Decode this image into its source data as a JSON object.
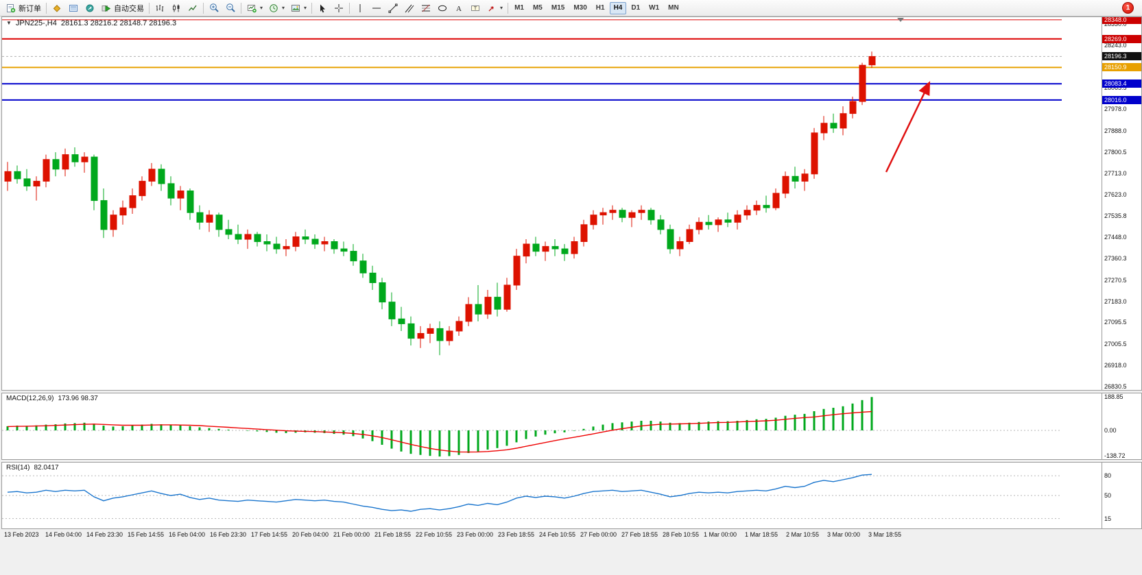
{
  "toolbar": {
    "new_order_label": "新订单",
    "autotrade_label": "自动交易",
    "timeframes": [
      "M1",
      "M5",
      "M15",
      "M30",
      "H1",
      "H4",
      "D1",
      "W1",
      "MN"
    ],
    "active_timeframe": "H4",
    "notification_count": "1"
  },
  "colors": {
    "candle_up": "#dd1200",
    "candle_down": "#00a81c",
    "macd_hist": "#00a81c",
    "macd_signal": "#ee0000",
    "rsi_line": "#1874cd",
    "arrow": "#e01010",
    "level_dash": "#b5b5b5"
  },
  "chart_data": {
    "type": "candlestick",
    "title_symbol": "JPN225-,H4",
    "title_ohlc": "28161.3 28216.2 28148.7 28196.3",
    "current_ohlc": {
      "open": "28161.3",
      "high": "28216.2",
      "low": "28148.7",
      "close": "28196.3"
    },
    "price_axis": {
      "ylim": [
        26816,
        28359
      ],
      "ticks": [
        "28330.0",
        "28243.0",
        "28065.5",
        "27978.0",
        "27888.0",
        "27800.5",
        "27713.0",
        "27623.0",
        "27535.8",
        "27448.0",
        "27360.3",
        "27270.5",
        "27183.0",
        "27095.5",
        "27005.5",
        "26918.0",
        "26830.5"
      ],
      "badges": [
        {
          "text": "28348.0",
          "price": 28348.0,
          "bg": "#cc0000"
        },
        {
          "text": "28269.0",
          "price": 28269.0,
          "bg": "#cc0000"
        },
        {
          "text": "28196.3",
          "price": 28196.3,
          "bg": "#111111"
        },
        {
          "text": "28150.9",
          "price": 28150.9,
          "bg": "#e8a000"
        },
        {
          "text": "28083.4",
          "price": 28083.4,
          "bg": "#0000cc"
        },
        {
          "text": "28016.0",
          "price": 28016.0,
          "bg": "#0000cc"
        }
      ]
    },
    "hlines": [
      {
        "price": 28348.0,
        "color": "#dd0000",
        "width": 1,
        "dash": false,
        "name": "resistance-line-28348"
      },
      {
        "price": 28269.0,
        "color": "#dd0000",
        "width": 2,
        "dash": false,
        "name": "resistance-line-28269"
      },
      {
        "price": 28196.3,
        "color": "#b0b0b0",
        "width": 1,
        "dash": true,
        "name": "bid-price-line"
      },
      {
        "price": 28150.9,
        "color": "#e8a000",
        "width": 2,
        "dash": false,
        "name": "orange-level-line-28150"
      },
      {
        "price": 28083.4,
        "color": "#0000cc",
        "width": 2,
        "dash": false,
        "name": "support-line-28083"
      },
      {
        "price": 28016.0,
        "color": "#0000cc",
        "width": 2,
        "dash": false,
        "name": "support-line-28016"
      }
    ],
    "annotations": [
      {
        "type": "arrow",
        "from_index": 91.5,
        "from_price": 27718,
        "to_index": 96,
        "to_price": 28088
      }
    ],
    "shift_marker_index": 93,
    "time_axis": [
      "13 Feb 2023",
      "14 Feb 04:00",
      "14 Feb 23:30",
      "15 Feb 14:55",
      "16 Feb 04:00",
      "16 Feb 23:30",
      "17 Feb 14:55",
      "20 Feb 04:00",
      "21 Feb 00:00",
      "21 Feb 18:55",
      "22 Feb 10:55",
      "23 Feb 00:00",
      "23 Feb 18:55",
      "24 Feb 10:55",
      "27 Feb 00:00",
      "27 Feb 18:55",
      "28 Feb 10:55",
      "1 Mar 00:00",
      "1 Mar 18:55",
      "2 Mar 10:55",
      "3 Mar 00:00",
      "3 Mar 18:55"
    ],
    "candles": [
      [
        27680,
        27760,
        27640,
        27720
      ],
      [
        27720,
        27745,
        27670,
        27690
      ],
      [
        27690,
        27730,
        27640,
        27660
      ],
      [
        27660,
        27700,
        27600,
        27680
      ],
      [
        27680,
        27790,
        27655,
        27770
      ],
      [
        27770,
        27800,
        27700,
        27730
      ],
      [
        27730,
        27815,
        27700,
        27790
      ],
      [
        27790,
        27820,
        27740,
        27760
      ],
      [
        27760,
        27800,
        27715,
        27780
      ],
      [
        27780,
        27790,
        27560,
        27600
      ],
      [
        27600,
        27650,
        27445,
        27480
      ],
      [
        27480,
        27560,
        27450,
        27540
      ],
      [
        27540,
        27600,
        27500,
        27570
      ],
      [
        27570,
        27650,
        27545,
        27620
      ],
      [
        27620,
        27700,
        27600,
        27680
      ],
      [
        27680,
        27755,
        27660,
        27730
      ],
      [
        27730,
        27750,
        27640,
        27670
      ],
      [
        27670,
        27700,
        27580,
        27610
      ],
      [
        27610,
        27660,
        27560,
        27640
      ],
      [
        27640,
        27650,
        27520,
        27550
      ],
      [
        27550,
        27580,
        27480,
        27510
      ],
      [
        27510,
        27560,
        27470,
        27540
      ],
      [
        27540,
        27550,
        27450,
        27480
      ],
      [
        27480,
        27520,
        27440,
        27460
      ],
      [
        27460,
        27500,
        27420,
        27440
      ],
      [
        27440,
        27480,
        27400,
        27460
      ],
      [
        27460,
        27470,
        27410,
        27430
      ],
      [
        27430,
        27460,
        27390,
        27420
      ],
      [
        27420,
        27450,
        27380,
        27400
      ],
      [
        27400,
        27440,
        27370,
        27410
      ],
      [
        27410,
        27470,
        27390,
        27450
      ],
      [
        27450,
        27480,
        27420,
        27440
      ],
      [
        27440,
        27460,
        27400,
        27420
      ],
      [
        27420,
        27450,
        27390,
        27430
      ],
      [
        27430,
        27440,
        27380,
        27400
      ],
      [
        27400,
        27430,
        27370,
        27390
      ],
      [
        27390,
        27420,
        27330,
        27350
      ],
      [
        27350,
        27380,
        27280,
        27300
      ],
      [
        27300,
        27330,
        27230,
        27260
      ],
      [
        27260,
        27280,
        27150,
        27180
      ],
      [
        27180,
        27220,
        27080,
        27110
      ],
      [
        27110,
        27160,
        27060,
        27090
      ],
      [
        27090,
        27120,
        27000,
        27030
      ],
      [
        27030,
        27080,
        26990,
        27050
      ],
      [
        27050,
        27090,
        27010,
        27070
      ],
      [
        27070,
        27100,
        26960,
        27020
      ],
      [
        27020,
        27080,
        27000,
        27060
      ],
      [
        27060,
        27120,
        27040,
        27100
      ],
      [
        27100,
        27200,
        27080,
        27170
      ],
      [
        27170,
        27250,
        27100,
        27130
      ],
      [
        27130,
        27230,
        27110,
        27200
      ],
      [
        27200,
        27260,
        27120,
        27150
      ],
      [
        27150,
        27280,
        27140,
        27250
      ],
      [
        27250,
        27400,
        27230,
        27370
      ],
      [
        27370,
        27440,
        27340,
        27420
      ],
      [
        27420,
        27450,
        27370,
        27390
      ],
      [
        27390,
        27430,
        27350,
        27410
      ],
      [
        27410,
        27440,
        27370,
        27400
      ],
      [
        27400,
        27420,
        27350,
        27380
      ],
      [
        27380,
        27450,
        27360,
        27430
      ],
      [
        27430,
        27520,
        27410,
        27500
      ],
      [
        27500,
        27560,
        27480,
        27540
      ],
      [
        27540,
        27570,
        27500,
        27550
      ],
      [
        27550,
        27580,
        27520,
        27560
      ],
      [
        27560,
        27570,
        27510,
        27530
      ],
      [
        27530,
        27560,
        27490,
        27550
      ],
      [
        27550,
        27580,
        27520,
        27560
      ],
      [
        27560,
        27570,
        27500,
        27520
      ],
      [
        27520,
        27540,
        27460,
        27480
      ],
      [
        27480,
        27500,
        27380,
        27400
      ],
      [
        27400,
        27450,
        27370,
        27430
      ],
      [
        27430,
        27500,
        27420,
        27480
      ],
      [
        27480,
        27530,
        27460,
        27510
      ],
      [
        27510,
        27540,
        27480,
        27500
      ],
      [
        27500,
        27530,
        27470,
        27520
      ],
      [
        27520,
        27550,
        27490,
        27510
      ],
      [
        27510,
        27560,
        27480,
        27540
      ],
      [
        27540,
        27580,
        27520,
        27560
      ],
      [
        27560,
        27600,
        27540,
        27580
      ],
      [
        27580,
        27620,
        27550,
        27570
      ],
      [
        27570,
        27650,
        27560,
        27630
      ],
      [
        27630,
        27720,
        27610,
        27700
      ],
      [
        27700,
        27740,
        27650,
        27680
      ],
      [
        27680,
        27730,
        27640,
        27710
      ],
      [
        27710,
        27900,
        27690,
        27880
      ],
      [
        27880,
        27950,
        27850,
        27920
      ],
      [
        27920,
        27960,
        27880,
        27900
      ],
      [
        27900,
        27990,
        27870,
        27960
      ],
      [
        27960,
        28030,
        27940,
        28010
      ],
      [
        28010,
        28170,
        27995,
        28160
      ],
      [
        28161.3,
        28216.2,
        28148.7,
        28196.3
      ]
    ],
    "macd": {
      "title": "MACD(12,26,9)",
      "values_text": "173.96 98.37",
      "value_main": "173.96",
      "value_signal": "98.37",
      "ylim": [
        -150,
        193
      ],
      "scale_ticks": [
        {
          "text": "188.85",
          "value": 188.85
        },
        {
          "text": "0.00",
          "value": 0
        },
        {
          "text": "-138.72",
          "value": -138.72
        }
      ],
      "histogram": [
        22,
        25,
        24,
        26,
        30,
        32,
        36,
        38,
        40,
        35,
        25,
        20,
        22,
        26,
        30,
        34,
        32,
        28,
        26,
        22,
        16,
        12,
        8,
        4,
        0,
        -2,
        -5,
        -8,
        -12,
        -14,
        -12,
        -10,
        -12,
        -14,
        -18,
        -22,
        -30,
        -42,
        -56,
        -75,
        -95,
        -110,
        -122,
        -128,
        -133,
        -136,
        -134,
        -128,
        -118,
        -110,
        -100,
        -92,
        -80,
        -62,
        -45,
        -32,
        -22,
        -15,
        -10,
        -2,
        8,
        20,
        30,
        38,
        42,
        46,
        50,
        50,
        46,
        40,
        38,
        40,
        44,
        46,
        48,
        48,
        50,
        54,
        58,
        60,
        66,
        76,
        82,
        86,
        100,
        112,
        118,
        126,
        140,
        158,
        174
      ],
      "signal": [
        20,
        21,
        22,
        23,
        24,
        26,
        28,
        30,
        32,
        33,
        31,
        29,
        27,
        27,
        27,
        28,
        29,
        29,
        28,
        27,
        25,
        22,
        19,
        16,
        13,
        10,
        7,
        4,
        1,
        -2,
        -4,
        -5,
        -6,
        -8,
        -10,
        -12,
        -16,
        -21,
        -28,
        -37,
        -49,
        -61,
        -73,
        -84,
        -94,
        -102,
        -108,
        -112,
        -113,
        -112,
        -110,
        -106,
        -101,
        -93,
        -83,
        -73,
        -63,
        -53,
        -44,
        -36,
        -27,
        -18,
        -8,
        1,
        9,
        16,
        23,
        28,
        32,
        33,
        34,
        35,
        37,
        39,
        41,
        42,
        44,
        46,
        48,
        50,
        53,
        58,
        63,
        67,
        70,
        76,
        82,
        87,
        91,
        95,
        98.37
      ]
    },
    "rsi": {
      "title": "RSI(14)",
      "value": "82.0417",
      "ylim": [
        0,
        100
      ],
      "levels": [
        {
          "text": "80",
          "value": 80
        },
        {
          "text": "50",
          "value": 50
        },
        {
          "text": "15",
          "value": 15
        }
      ],
      "values": [
        55,
        56,
        54,
        55,
        58,
        56,
        58,
        57,
        58,
        48,
        42,
        46,
        48,
        51,
        54,
        57,
        53,
        50,
        52,
        47,
        44,
        46,
        43,
        42,
        41,
        43,
        42,
        41,
        40,
        42,
        44,
        43,
        42,
        43,
        41,
        40,
        37,
        34,
        32,
        29,
        27,
        28,
        26,
        29,
        30,
        28,
        30,
        33,
        37,
        35,
        38,
        36,
        40,
        46,
        49,
        47,
        49,
        48,
        46,
        49,
        53,
        56,
        57,
        58,
        56,
        57,
        58,
        55,
        52,
        48,
        50,
        53,
        55,
        54,
        55,
        54,
        56,
        57,
        58,
        57,
        60,
        64,
        62,
        64,
        70,
        73,
        71,
        74,
        77,
        81,
        82.0417
      ]
    }
  }
}
